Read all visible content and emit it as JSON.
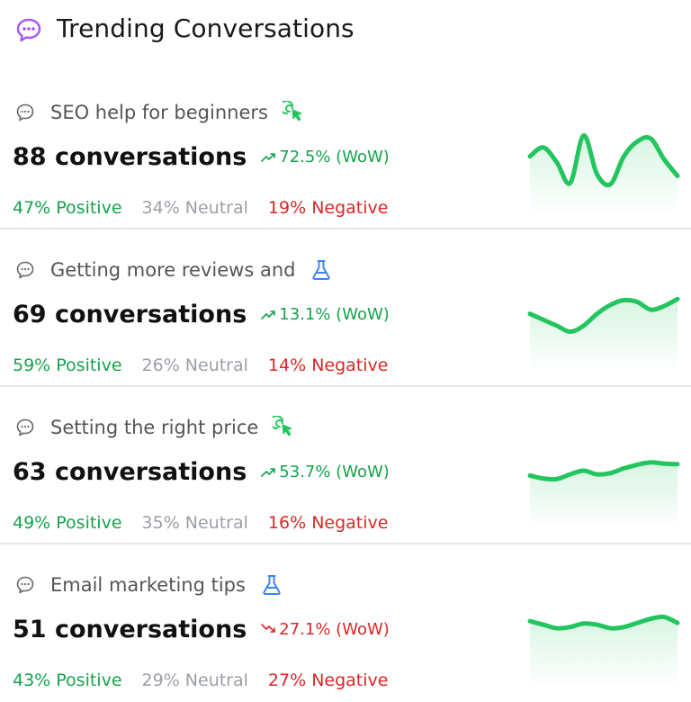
{
  "header": {
    "title": "Trending Conversations",
    "icon": "chat-bubble-dots-icon",
    "icon_color": "#a855f7"
  },
  "colors": {
    "positive": "#16a34a",
    "neutral": "#9aa0a6",
    "negative": "#dc2626",
    "spark": "#22c55e"
  },
  "items": [
    {
      "topic": "SEO help for beginners",
      "badge": "cursor-click-icon",
      "count": "88 conversations",
      "trend": "72.5% (WoW)",
      "trend_dir": "up",
      "positive": "47% Positive",
      "neutral": "34% Neutral",
      "negative": "19% Negative",
      "spark": [
        0.55,
        0.7,
        0.45,
        0.1,
        0.9,
        0.25,
        0.08,
        0.55,
        0.8,
        0.85,
        0.5,
        0.22
      ]
    },
    {
      "topic": "Getting more reviews and",
      "badge": "flask-icon",
      "count": "69 conversations",
      "trend": "13.1% (WoW)",
      "trend_dir": "up",
      "positive": "59% Positive",
      "neutral": "26% Neutral",
      "negative": "14% Negative",
      "spark": [
        0.55,
        0.45,
        0.35,
        0.25,
        0.35,
        0.55,
        0.7,
        0.78,
        0.75,
        0.62,
        0.68,
        0.8
      ]
    },
    {
      "topic": "Setting the right price",
      "badge": "cursor-click-icon",
      "count": "63 conversations",
      "trend": "53.7% (WoW)",
      "trend_dir": "up",
      "positive": "49% Positive",
      "neutral": "35% Neutral",
      "negative": "16% Negative",
      "spark": [
        0.48,
        0.43,
        0.42,
        0.5,
        0.56,
        0.5,
        0.52,
        0.6,
        0.66,
        0.7,
        0.68,
        0.67
      ]
    },
    {
      "topic": "Email marketing tips",
      "badge": "flask-icon",
      "count": "51 conversations",
      "trend": "27.1% (WoW)",
      "trend_dir": "down",
      "positive": "43% Positive",
      "neutral": "29% Neutral",
      "negative": "27% Negative",
      "spark": [
        0.68,
        0.62,
        0.56,
        0.58,
        0.64,
        0.62,
        0.56,
        0.58,
        0.65,
        0.72,
        0.75,
        0.65
      ]
    }
  ]
}
